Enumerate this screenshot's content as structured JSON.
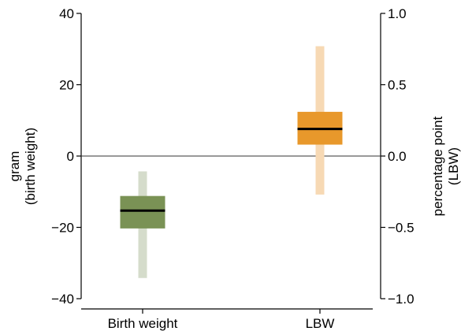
{
  "chart_data": {
    "type": "box",
    "categories": [
      "Birth weight",
      "LBW"
    ],
    "left_axis": {
      "label_line1": "gram",
      "label_line2": "(birth weight)",
      "ylim": [
        -40,
        40
      ],
      "ticks": [
        40,
        20,
        0,
        -20,
        -40
      ],
      "tick_labels": [
        "40",
        "20",
        "0",
        "−20",
        "−40"
      ]
    },
    "right_axis": {
      "label_line1": "percentage point",
      "label_line2": "(LBW)",
      "ylim": [
        -1.0,
        1.0
      ],
      "ticks": [
        1.0,
        0.5,
        0.0,
        -0.5,
        -1.0
      ],
      "tick_labels": [
        "1.0",
        "0.5",
        "0.0",
        "−0.5",
        "−1.0"
      ]
    },
    "reference_line": 0,
    "series": [
      {
        "category": "Birth weight",
        "axis": "left",
        "median": -15.3,
        "box": [
          -20.3,
          -11.2
        ],
        "range": [
          -34.2,
          -4.3
        ],
        "box_color": "#7a9255",
        "range_color": "#d5dccb"
      },
      {
        "category": "LBW",
        "axis": "right",
        "median": 0.19,
        "box": [
          0.08,
          0.31
        ],
        "range": [
          -0.27,
          0.77
        ],
        "box_color": "#e8982b",
        "range_color": "#f7d9b4"
      }
    ]
  }
}
